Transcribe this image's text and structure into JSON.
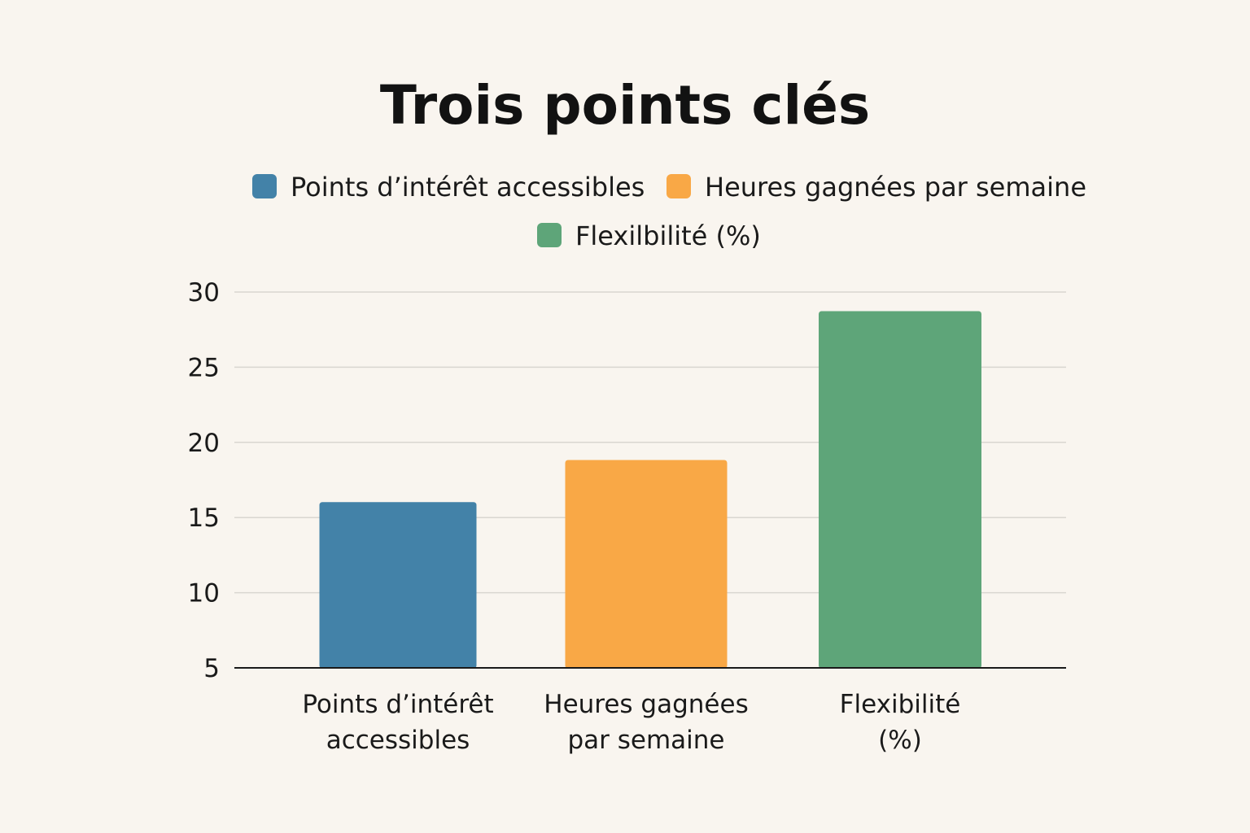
{
  "chart_data": {
    "type": "bar",
    "title": "Trois points clés",
    "categories": [
      "Points d’intérêt accessibles",
      "Heures gagnées par semaine",
      "Flexibilité (%)"
    ],
    "category_label_lines": [
      [
        "Points d’intérêt",
        "accessibles"
      ],
      [
        "Heures gagnées",
        "par semaine"
      ],
      [
        "Flexibilité",
        "(%)"
      ]
    ],
    "values": [
      16,
      18.8,
      28.7
    ],
    "colors": [
      "#4382a8",
      "#f9a846",
      "#5ea579"
    ],
    "legend": [
      {
        "label": "Points d’intérêt accessibles",
        "color": "#4382a8"
      },
      {
        "label": "Heures gagnées par semaine",
        "color": "#f9a846"
      },
      {
        "label": "Flexilbilité (%)",
        "color": "#5ea579"
      }
    ],
    "legend_position": "top",
    "xlabel": "",
    "ylabel": "",
    "ylim": [
      5,
      30
    ],
    "yticks": [
      "5",
      "10",
      "15",
      "20",
      "25",
      "30"
    ],
    "grid": true
  }
}
